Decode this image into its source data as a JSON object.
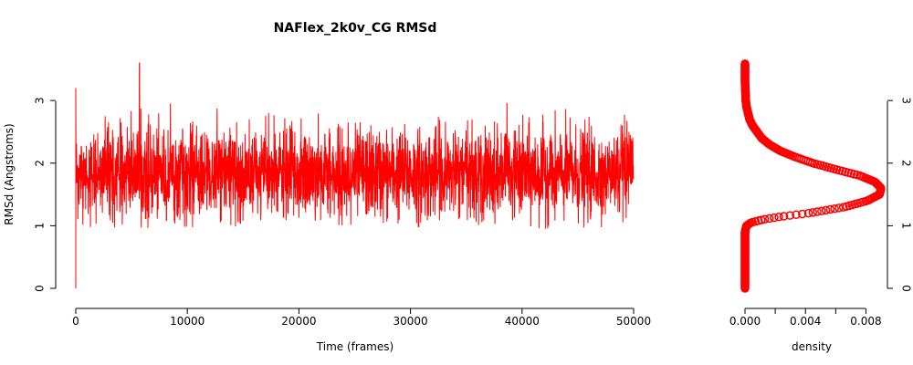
{
  "chart_data": [
    {
      "type": "line",
      "title": "NAFlex_2k0v_CG RMSd",
      "xlabel": "Time (frames)",
      "ylabel": "RMSd (Angstroms)",
      "xlim": [
        0,
        50000
      ],
      "ylim": [
        0,
        3.6
      ],
      "x_ticks": [
        0,
        10000,
        20000,
        30000,
        40000,
        50000
      ],
      "x_tick_labels": [
        "0",
        "10000",
        "20000",
        "30000",
        "40000",
        "50000"
      ],
      "y_ticks": [
        0,
        1,
        2,
        3
      ],
      "y_tick_labels": [
        "0",
        "1",
        "2",
        "3"
      ],
      "color": "#ff0000",
      "grid": false,
      "series_summary": {
        "frames": 50000,
        "start_value": 0.0,
        "typical_low": 1.15,
        "typical_high": 2.9,
        "min_value": 0.95,
        "max_value": 3.6,
        "max_at_frame": 5700
      }
    },
    {
      "type": "scatter",
      "title": "",
      "xlabel": "density",
      "ylabel": "",
      "xlim": [
        0,
        0.009
      ],
      "ylim": [
        0,
        3.6
      ],
      "x_ticks": [
        0.0,
        0.002,
        0.004,
        0.006,
        0.008
      ],
      "x_tick_labels": [
        "0.000",
        "",
        "0.004",
        "",
        "0.008"
      ],
      "y_ticks": [
        0,
        1,
        2,
        3
      ],
      "y_tick_labels": [
        "0",
        "1",
        "2",
        "3"
      ],
      "y_axis_side": "right",
      "color": "#ff0000",
      "grid": false,
      "points": [
        {
          "rmsd": 0.0,
          "density": 0.0
        },
        {
          "rmsd": 0.9,
          "density": 0.0
        },
        {
          "rmsd": 1.0,
          "density": 0.0001
        },
        {
          "rmsd": 1.05,
          "density": 0.0004
        },
        {
          "rmsd": 1.1,
          "density": 0.0012
        },
        {
          "rmsd": 1.15,
          "density": 0.0025
        },
        {
          "rmsd": 1.2,
          "density": 0.0042
        },
        {
          "rmsd": 1.3,
          "density": 0.0066
        },
        {
          "rmsd": 1.4,
          "density": 0.0081
        },
        {
          "rmsd": 1.5,
          "density": 0.0089
        },
        {
          "rmsd": 1.6,
          "density": 0.009
        },
        {
          "rmsd": 1.7,
          "density": 0.0086
        },
        {
          "rmsd": 1.8,
          "density": 0.0076
        },
        {
          "rmsd": 1.9,
          "density": 0.006
        },
        {
          "rmsd": 2.0,
          "density": 0.0045
        },
        {
          "rmsd": 2.1,
          "density": 0.0033
        },
        {
          "rmsd": 2.2,
          "density": 0.0023
        },
        {
          "rmsd": 2.3,
          "density": 0.0016
        },
        {
          "rmsd": 2.4,
          "density": 0.0011
        },
        {
          "rmsd": 2.5,
          "density": 0.0008
        },
        {
          "rmsd": 2.6,
          "density": 0.0005
        },
        {
          "rmsd": 2.7,
          "density": 0.0003
        },
        {
          "rmsd": 2.8,
          "density": 0.0002
        },
        {
          "rmsd": 2.9,
          "density": 0.0001
        },
        {
          "rmsd": 3.0,
          "density": 5e-05
        },
        {
          "rmsd": 3.3,
          "density": 0.0
        },
        {
          "rmsd": 3.6,
          "density": 0.0
        }
      ]
    }
  ]
}
